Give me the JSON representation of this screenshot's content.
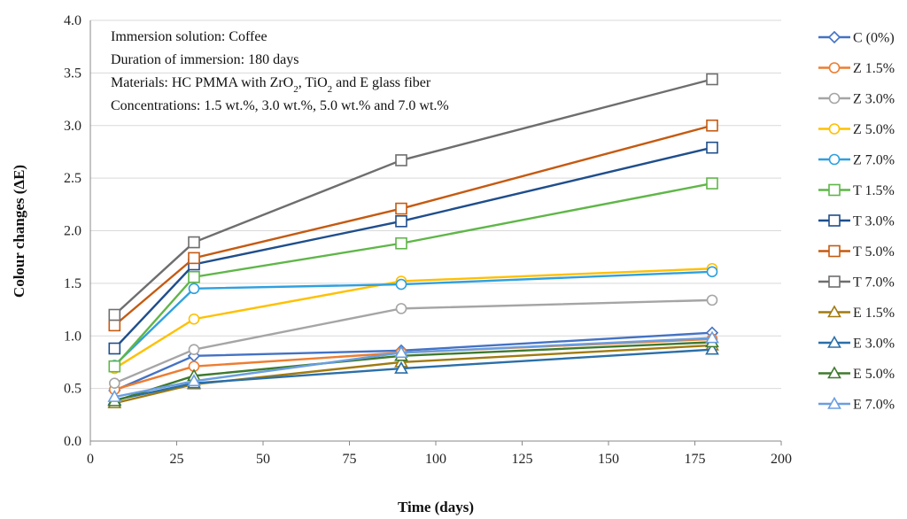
{
  "chart_data": {
    "type": "line",
    "xlabel": "Time (days)",
    "ylabel": "Colour changes (ΔE)",
    "xlim": [
      0,
      200
    ],
    "ylim": [
      0.0,
      4.0
    ],
    "x_ticks": [
      "0",
      "25",
      "50",
      "75",
      "100",
      "125",
      "150",
      "175",
      "200"
    ],
    "y_ticks": [
      "0.0",
      "0.5",
      "1.0",
      "1.5",
      "2.0",
      "2.5",
      "3.0",
      "3.5",
      "4.0"
    ],
    "grid": "horizontal",
    "legend_position": "right",
    "annotations": [
      {
        "text": "Immersion solution:  Coffee"
      },
      {
        "text": "Duration of immersion:  180 days"
      },
      {
        "parts": [
          {
            "t": "Materials: HC PMMA with ZrO"
          },
          {
            "t": "2",
            "sub": true
          },
          {
            "t": ", TiO"
          },
          {
            "t": "2",
            "sub": true
          },
          {
            "t": " and E glass fiber"
          }
        ]
      },
      {
        "text": "Concentrations: 1.5 wt.%,  3.0 wt.%,  5.0 wt.% and 7.0 wt.%"
      }
    ],
    "x": [
      7,
      30,
      90,
      180
    ],
    "series": [
      {
        "name": "C (0%)",
        "color": "#4472c4",
        "marker": "diamond",
        "values": [
          0.48,
          0.81,
          0.86,
          1.03
        ]
      },
      {
        "name": "Z 1.5%",
        "color": "#ed7d31",
        "marker": "circle",
        "values": [
          0.49,
          0.71,
          0.84,
          0.97
        ]
      },
      {
        "name": "Z 3.0%",
        "color": "#a5a5a5",
        "marker": "circle",
        "values": [
          0.55,
          0.87,
          1.26,
          1.34
        ]
      },
      {
        "name": "Z 5.0%",
        "color": "#ffc000",
        "marker": "circle",
        "values": [
          0.69,
          1.16,
          1.52,
          1.64
        ]
      },
      {
        "name": "Z 7.0%",
        "color": "#2ea0e0",
        "marker": "circle",
        "values": [
          0.72,
          1.45,
          1.49,
          1.61
        ]
      },
      {
        "name": "T 1.5%",
        "color": "#5fb648",
        "marker": "square",
        "values": [
          0.71,
          1.56,
          1.88,
          2.45
        ]
      },
      {
        "name": "T 3.0%",
        "color": "#1f4e8c",
        "marker": "square",
        "values": [
          0.88,
          1.68,
          2.09,
          2.79
        ]
      },
      {
        "name": "T 5.0%",
        "color": "#c55a11",
        "marker": "square",
        "values": [
          1.1,
          1.74,
          2.21,
          3.0
        ]
      },
      {
        "name": "T 7.0%",
        "color": "#6e6e6e",
        "marker": "square",
        "values": [
          1.2,
          1.89,
          2.67,
          3.44
        ]
      },
      {
        "name": "E 1.5%",
        "color": "#a07a10",
        "marker": "triangle",
        "values": [
          0.36,
          0.54,
          0.75,
          0.91
        ]
      },
      {
        "name": "E 3.0%",
        "color": "#2a6fa8",
        "marker": "triangle",
        "values": [
          0.39,
          0.55,
          0.69,
          0.87
        ]
      },
      {
        "name": "E 5.0%",
        "color": "#3e7a2e",
        "marker": "triangle",
        "values": [
          0.38,
          0.62,
          0.81,
          0.94
        ]
      },
      {
        "name": "E 7.0%",
        "color": "#6a9ee0",
        "marker": "triangle",
        "values": [
          0.42,
          0.57,
          0.84,
          0.98
        ]
      }
    ]
  }
}
